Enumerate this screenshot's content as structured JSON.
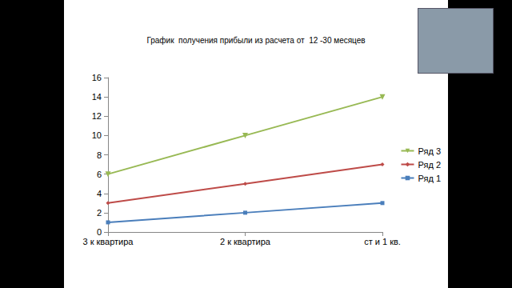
{
  "chart_data": {
    "type": "line",
    "title": "График  получения прибыли из расчета от  12 -30 месяцев",
    "categories": [
      "3 к квартира",
      "2 к квартира",
      "ст и 1 кв."
    ],
    "series": [
      {
        "name": "Ряд 1",
        "color": "#4a7ebb",
        "marker": "square",
        "values": [
          1,
          2,
          3
        ]
      },
      {
        "name": "Ряд 2",
        "color": "#be4b48",
        "marker": "diamond",
        "values": [
          3,
          5,
          7
        ]
      },
      {
        "name": "Ряд 3",
        "color": "#98b954",
        "marker": "triangle-down",
        "values": [
          6,
          10,
          14
        ]
      }
    ],
    "ylim": [
      0,
      16
    ],
    "yticks": [
      0,
      2,
      4,
      6,
      8,
      10,
      12,
      14,
      16
    ],
    "grid": false,
    "legend": "right"
  }
}
